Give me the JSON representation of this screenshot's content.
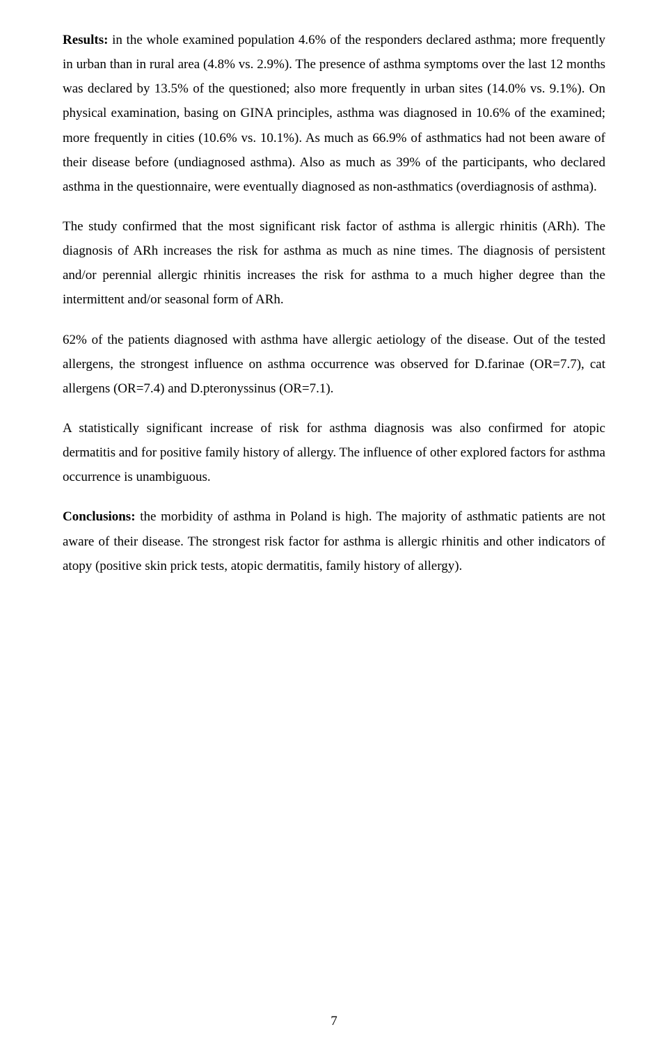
{
  "document": {
    "font_family": "Times New Roman",
    "body_font_size_pt": 12,
    "line_height": 1.85,
    "text_color": "#000000",
    "background_color": "#ffffff",
    "alignment": "justify",
    "page_number": "7",
    "paragraphs": [
      {
        "bold_lead": "Results:",
        "rest": " in the whole examined population 4.6% of the responders declared asthma; more frequently in urban than in rural area (4.8% vs. 2.9%). The presence of asthma symptoms over the last 12 months was declared by 13.5% of the questioned; also more frequently in urban sites (14.0% vs. 9.1%). On physical examination, basing on GINA principles, asthma was diagnosed in 10.6% of the examined; more frequently in cities (10.6% vs. 10.1%). As much as 66.9% of asthmatics had not been aware of their disease before (undiagnosed asthma). Also as much as 39% of the participants, who declared asthma in the questionnaire, were eventually diagnosed as non-asthmatics (overdiagnosis of asthma)."
      },
      {
        "bold_lead": "",
        "rest": "The study confirmed that the most significant risk factor of asthma is allergic rhinitis (ARh). The diagnosis of ARh increases the risk for asthma as much as nine times. The diagnosis of persistent and/or perennial allergic rhinitis increases the risk for asthma to a much higher degree than the intermittent and/or seasonal form of ARh."
      },
      {
        "bold_lead": "",
        "rest": "62% of the patients diagnosed with asthma have allergic aetiology of the disease. Out of the tested allergens, the strongest influence on asthma occurrence was observed for D.farinae (OR=7.7), cat allergens (OR=7.4) and D.pteronyssinus (OR=7.1)."
      },
      {
        "bold_lead": "",
        "rest": "A statistically significant increase of risk for asthma diagnosis was also confirmed for atopic dermatitis and for positive family history of allergy. The influence of other explored factors for asthma occurrence is unambiguous."
      },
      {
        "bold_lead": "Conclusions:",
        "rest": " the morbidity of asthma in Poland is high. The majority of asthmatic patients are not aware of their disease. The strongest risk factor for asthma is allergic rhinitis and other indicators of atopy (positive skin prick tests, atopic dermatitis, family history of allergy)."
      }
    ]
  }
}
